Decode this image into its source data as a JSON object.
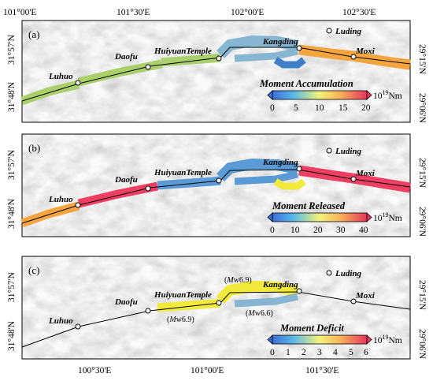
{
  "top_axis_labels": [
    "101°00'E",
    "101°30'E",
    "102°00'E",
    "102°30'E"
  ],
  "bottom_axis_labels": [
    "100°30'E",
    "101°00'E",
    "101°30'E"
  ],
  "panels": [
    {
      "label": "(a)",
      "left_labels": [
        "31°57'N",
        "31°48'N"
      ],
      "right_labels": [
        "29°15'N",
        "29°06'N"
      ],
      "colorbar": {
        "title": "Moment Accumulation",
        "ticks": [
          "0",
          "5",
          "10",
          "15",
          "20"
        ],
        "unit": "10",
        "unit_exp": "19",
        "unit_suffix": "Nm"
      }
    },
    {
      "label": "(b)",
      "left_labels": [
        "31°57'N",
        "31°48'N"
      ],
      "right_labels": [
        "29°15'N",
        "29°06'N"
      ],
      "colorbar": {
        "title": "Moment Released",
        "ticks": [
          "0",
          "10",
          "20",
          "30",
          "40"
        ],
        "unit": "10",
        "unit_exp": "19",
        "unit_suffix": "Nm"
      }
    },
    {
      "label": "(c)",
      "left_labels": [
        "31°57'N",
        "31°48'N"
      ],
      "right_labels": [
        "29°15'N",
        "29°06'N"
      ],
      "colorbar": {
        "title": "Moment Deficit",
        "ticks": [
          "0",
          "1",
          "2",
          "3",
          "4",
          "5",
          "6"
        ],
        "unit": "10",
        "unit_exp": "19",
        "unit_suffix": "Nm"
      },
      "annotations": {
        "mw_a_pre": "(",
        "mw_a_M": "M",
        "mw_a_post": "w6.9)",
        "mw_b_pre": "(",
        "mw_b_M": "M",
        "mw_b_post": "w6.9)",
        "mw_c_pre": "(",
        "mw_c_M": "M",
        "mw_c_post": "w6.6)"
      }
    }
  ],
  "towns": [
    "Luhuo",
    "Daofu",
    "HuiyuanTemple",
    "Kangding",
    "Luding",
    "Moxi"
  ],
  "colors": {
    "blue": "#5b9bd5",
    "blue_dark": "#3f7fc9",
    "green": "#a9d06a",
    "orange": "#f5a540",
    "red": "#ee3f63",
    "yellow": "#f2ea3a",
    "cyan_gray": "#86b6d2"
  }
}
